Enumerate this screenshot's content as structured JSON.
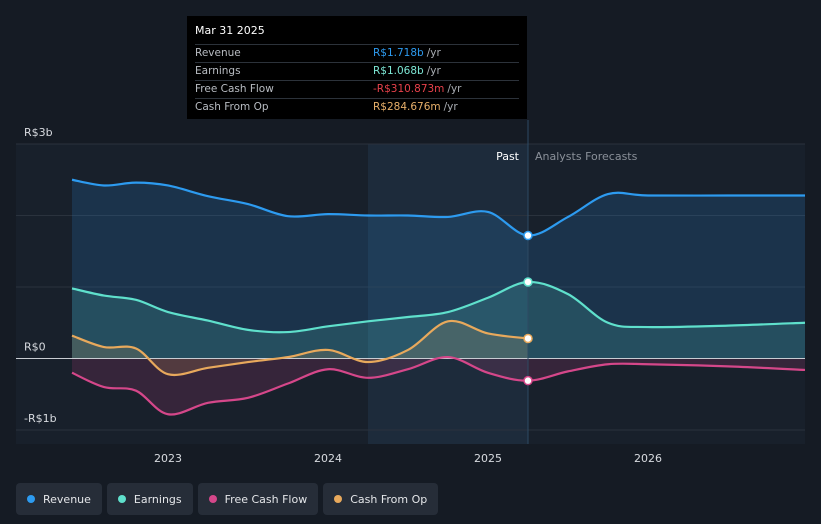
{
  "tooltip": {
    "date": "Mar 31 2025",
    "rows": [
      {
        "label": "Revenue",
        "value": "R$1.718b",
        "unit": "/yr",
        "color": "#2d9bf0"
      },
      {
        "label": "Earnings",
        "value": "R$1.068b",
        "unit": "/yr",
        "color": "#7ee8d6"
      },
      {
        "label": "Free Cash Flow",
        "value": "-R$310.873m",
        "unit": "/yr",
        "color": "#e8414b"
      },
      {
        "label": "Cash From Op",
        "value": "R$284.676m",
        "unit": "/yr",
        "color": "#e8b06a"
      }
    ]
  },
  "legend": [
    {
      "label": "Revenue",
      "color": "#2d9bf0"
    },
    {
      "label": "Earnings",
      "color": "#5fe0cc"
    },
    {
      "label": "Free Cash Flow",
      "color": "#d5478a"
    },
    {
      "label": "Cash From Op",
      "color": "#e8a95c"
    }
  ],
  "chart_data": {
    "type": "line",
    "title": "",
    "xlabel": "",
    "ylabel": "",
    "ylim": [
      -1,
      3
    ],
    "y_tick_labels": [
      {
        "value": 3,
        "label": "R$3b"
      },
      {
        "value": 0,
        "label": "R$0"
      },
      {
        "value": -1,
        "label": "-R$1b"
      }
    ],
    "x_tick_labels": [
      {
        "value": 2023.0,
        "label": "2023"
      },
      {
        "value": 2024.0,
        "label": "2024"
      },
      {
        "value": 2025.0,
        "label": "2025"
      },
      {
        "value": 2026.0,
        "label": "2026"
      }
    ],
    "xlim": [
      2022.2,
      2027.0
    ],
    "divider_x": 2025.25,
    "highlight_start": 2024.25,
    "past_label": "Past",
    "forecast_label": "Analysts Forecasts",
    "series": [
      {
        "name": "Revenue",
        "color": "#2d9bf0",
        "fill": true,
        "marker_x": 2025.25,
        "points": [
          [
            2022.4,
            2.5
          ],
          [
            2022.6,
            2.42
          ],
          [
            2022.8,
            2.46
          ],
          [
            2023.0,
            2.42
          ],
          [
            2023.25,
            2.27
          ],
          [
            2023.5,
            2.16
          ],
          [
            2023.75,
            1.99
          ],
          [
            2024.0,
            2.02
          ],
          [
            2024.25,
            2.0
          ],
          [
            2024.5,
            2.0
          ],
          [
            2024.75,
            1.98
          ],
          [
            2025.0,
            2.05
          ],
          [
            2025.25,
            1.72
          ],
          [
            2025.5,
            1.98
          ],
          [
            2025.75,
            2.3
          ],
          [
            2026.0,
            2.28
          ],
          [
            2026.5,
            2.28
          ],
          [
            2027.0,
            2.28
          ]
        ]
      },
      {
        "name": "Earnings",
        "color": "#5fe0cc",
        "fill": true,
        "marker_x": 2025.25,
        "points": [
          [
            2022.4,
            0.98
          ],
          [
            2022.6,
            0.88
          ],
          [
            2022.8,
            0.82
          ],
          [
            2023.0,
            0.65
          ],
          [
            2023.25,
            0.53
          ],
          [
            2023.5,
            0.4
          ],
          [
            2023.75,
            0.37
          ],
          [
            2024.0,
            0.45
          ],
          [
            2024.25,
            0.52
          ],
          [
            2024.5,
            0.58
          ],
          [
            2024.75,
            0.65
          ],
          [
            2025.0,
            0.85
          ],
          [
            2025.25,
            1.07
          ],
          [
            2025.5,
            0.9
          ],
          [
            2025.75,
            0.5
          ],
          [
            2026.0,
            0.44
          ],
          [
            2026.5,
            0.46
          ],
          [
            2027.0,
            0.5
          ]
        ]
      },
      {
        "name": "Free Cash Flow",
        "color": "#d5478a",
        "fill": true,
        "marker_x": 2025.25,
        "points": [
          [
            2022.4,
            -0.2
          ],
          [
            2022.6,
            -0.4
          ],
          [
            2022.8,
            -0.45
          ],
          [
            2023.0,
            -0.78
          ],
          [
            2023.25,
            -0.62
          ],
          [
            2023.5,
            -0.55
          ],
          [
            2023.75,
            -0.35
          ],
          [
            2024.0,
            -0.15
          ],
          [
            2024.25,
            -0.27
          ],
          [
            2024.5,
            -0.15
          ],
          [
            2024.75,
            0.02
          ],
          [
            2025.0,
            -0.2
          ],
          [
            2025.25,
            -0.31
          ],
          [
            2025.5,
            -0.18
          ],
          [
            2025.75,
            -0.08
          ],
          [
            2026.0,
            -0.08
          ],
          [
            2026.5,
            -0.11
          ],
          [
            2027.0,
            -0.16
          ]
        ]
      },
      {
        "name": "Cash From Op",
        "color": "#e8a95c",
        "fill": true,
        "marker_x": 2025.25,
        "points": [
          [
            2022.4,
            0.32
          ],
          [
            2022.6,
            0.16
          ],
          [
            2022.8,
            0.14
          ],
          [
            2023.0,
            -0.22
          ],
          [
            2023.25,
            -0.13
          ],
          [
            2023.5,
            -0.05
          ],
          [
            2023.75,
            0.02
          ],
          [
            2024.0,
            0.12
          ],
          [
            2024.25,
            -0.05
          ],
          [
            2024.5,
            0.12
          ],
          [
            2024.75,
            0.52
          ],
          [
            2025.0,
            0.35
          ],
          [
            2025.25,
            0.28
          ]
        ]
      }
    ]
  }
}
